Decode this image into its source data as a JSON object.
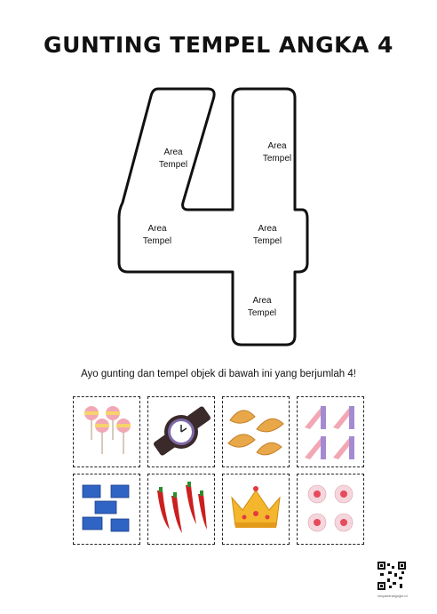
{
  "title": "GUNTING TEMPEL ANGKA 4",
  "area_label_line1": "Area",
  "area_label_line2": "Tempel",
  "instruction": "Ayo gunting dan tempel objek di bawah ini yang berjumlah 4!",
  "cards": [
    {
      "name": "lollipops",
      "icon": "lollipop-icon",
      "count": 4
    },
    {
      "name": "watch",
      "icon": "watch-icon",
      "count": 1
    },
    {
      "name": "dumplings",
      "icon": "pastel-icon",
      "count": 4
    },
    {
      "name": "slides",
      "icon": "slide-icon",
      "count": 4
    },
    {
      "name": "blocks",
      "icon": "toy-block-icon",
      "count": 5
    },
    {
      "name": "chilies",
      "icon": "chili-icon",
      "count": 4
    },
    {
      "name": "crown",
      "icon": "crown-icon",
      "count": 1
    },
    {
      "name": "flowers",
      "icon": "flower-icon",
      "count": 4
    }
  ],
  "qr_caption": "tanyaminiagogie.id"
}
